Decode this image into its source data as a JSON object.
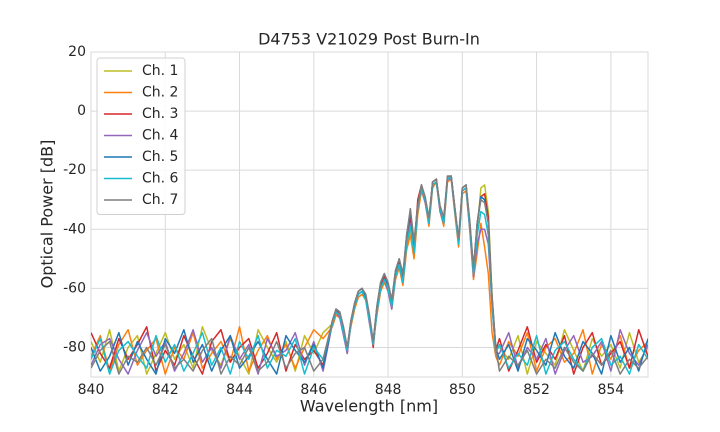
{
  "chart_data": {
    "type": "line",
    "title": "D4753 V21029 Post Burn-In",
    "x_label": "Wavelength [nm]",
    "y_label": "Optical Power [dB]",
    "xlim": [
      840,
      855
    ],
    "ylim": [
      -90,
      20
    ],
    "xticks": [
      840,
      842,
      844,
      846,
      848,
      850,
      852,
      854
    ],
    "yticks": [
      -80,
      -60,
      -40,
      -20,
      0,
      20
    ],
    "grid": true,
    "legend": "upper left",
    "x": [
      840,
      840.25,
      840.5,
      840.75,
      841,
      841.25,
      841.5,
      841.75,
      842,
      842.25,
      842.5,
      842.75,
      843,
      843.25,
      843.5,
      843.75,
      844,
      844.25,
      844.5,
      844.75,
      845,
      845.25,
      845.5,
      845.75,
      846,
      846.25,
      846.5,
      846.6,
      846.7,
      846.8,
      846.9,
      847,
      847.1,
      847.2,
      847.3,
      847.4,
      847.5,
      847.6,
      847.7,
      847.8,
      847.9,
      848,
      848.1,
      848.2,
      848.3,
      848.4,
      848.5,
      848.6,
      848.7,
      848.8,
      848.9,
      849,
      849.1,
      849.2,
      849.3,
      849.4,
      849.5,
      849.6,
      849.7,
      849.8,
      849.9,
      850,
      850.1,
      850.2,
      850.3,
      850.4,
      850.5,
      850.6,
      850.7,
      850.8,
      850.9,
      851,
      851.25,
      851.5,
      851.75,
      852,
      852.25,
      852.5,
      852.75,
      853,
      853.25,
      853.5,
      853.75,
      854,
      854.25,
      854.5,
      854.75,
      855
    ],
    "series": [
      {
        "name": "Ch. 1",
        "color": "#bcbd22",
        "values": [
          -78,
          -85,
          -74,
          -88,
          -80,
          -76,
          -89,
          -82,
          -75,
          -84,
          -79,
          -87,
          -73,
          -81,
          -86,
          -77,
          -83,
          -89,
          -74,
          -80,
          -85,
          -78,
          -88,
          -76,
          -82,
          -75,
          -72,
          -68,
          -69,
          -74,
          -81,
          -72,
          -66,
          -62,
          -61,
          -63,
          -70,
          -79,
          -68,
          -60,
          -57,
          -60,
          -66,
          -56,
          -52,
          -58,
          -46,
          -40,
          -49,
          -33,
          -26,
          -30,
          -38,
          -25,
          -24,
          -33,
          -38,
          -23,
          -22,
          -34,
          -45,
          -27,
          -26,
          -39,
          -55,
          -40,
          -26,
          -25,
          -34,
          -62,
          -80,
          -80,
          -84,
          -76,
          -89,
          -78,
          -82,
          -86,
          -74,
          -81,
          -88,
          -77,
          -83,
          -79,
          -87,
          -75,
          -85,
          -80
        ]
      },
      {
        "name": "Ch. 2",
        "color": "#ff7f0e",
        "values": [
          -83,
          -76,
          -88,
          -79,
          -74,
          -86,
          -81,
          -77,
          -89,
          -80,
          -84,
          -75,
          -87,
          -82,
          -78,
          -85,
          -73,
          -88,
          -81,
          -76,
          -84,
          -79,
          -87,
          -80,
          -74,
          -77,
          -73,
          -69,
          -70,
          -75,
          -80,
          -73,
          -67,
          -63,
          -62,
          -64,
          -71,
          -78,
          -69,
          -61,
          -58,
          -61,
          -67,
          -57,
          -53,
          -59,
          -47,
          -42,
          -50,
          -35,
          -27,
          -31,
          -39,
          -26,
          -24,
          -34,
          -39,
          -24,
          -23,
          -35,
          -46,
          -28,
          -27,
          -40,
          -57,
          -48,
          -38,
          -46,
          -55,
          -75,
          -83,
          -86,
          -78,
          -83,
          -75,
          -88,
          -80,
          -77,
          -85,
          -82,
          -74,
          -89,
          -79,
          -84,
          -76,
          -87,
          -81,
          -78
        ]
      },
      {
        "name": "Ch. 3",
        "color": "#d62728",
        "values": [
          -75,
          -82,
          -87,
          -77,
          -84,
          -79,
          -73,
          -88,
          -81,
          -86,
          -76,
          -83,
          -89,
          -78,
          -74,
          -85,
          -80,
          -77,
          -87,
          -82,
          -75,
          -88,
          -79,
          -84,
          -81,
          -86,
          -71,
          -67,
          -69,
          -75,
          -82,
          -71,
          -65,
          -61,
          -60,
          -63,
          -71,
          -80,
          -67,
          -59,
          -56,
          -60,
          -65,
          -55,
          -51,
          -57,
          -44,
          -36,
          -47,
          -30,
          -25,
          -30,
          -37,
          -24,
          -23,
          -33,
          -37,
          -22,
          -22,
          -33,
          -44,
          -26,
          -25,
          -38,
          -54,
          -38,
          -29,
          -28,
          -36,
          -64,
          -81,
          -77,
          -88,
          -81,
          -73,
          -85,
          -79,
          -84,
          -76,
          -89,
          -80,
          -75,
          -86,
          -82,
          -78,
          -87,
          -74,
          -83
        ]
      },
      {
        "name": "Ch. 4",
        "color": "#9467bd",
        "values": [
          -86,
          -79,
          -77,
          -84,
          -89,
          -81,
          -75,
          -83,
          -78,
          -88,
          -82,
          -74,
          -85,
          -80,
          -87,
          -76,
          -84,
          -79,
          -89,
          -77,
          -83,
          -81,
          -75,
          -86,
          -78,
          -88,
          -72,
          -68,
          -70,
          -76,
          -82,
          -72,
          -66,
          -62,
          -61,
          -64,
          -72,
          -79,
          -68,
          -60,
          -57,
          -61,
          -67,
          -56,
          -52,
          -58,
          -45,
          -38,
          -48,
          -32,
          -26,
          -31,
          -38,
          -25,
          -24,
          -34,
          -38,
          -23,
          -23,
          -34,
          -45,
          -27,
          -26,
          -40,
          -56,
          -45,
          -40,
          -40,
          -45,
          -66,
          -82,
          -82,
          -75,
          -87,
          -80,
          -84,
          -77,
          -89,
          -81,
          -76,
          -85,
          -83,
          -78,
          -88,
          -74,
          -82,
          -86,
          -79
        ]
      },
      {
        "name": "Ch. 5",
        "color": "#1f77b4",
        "values": [
          -80,
          -88,
          -83,
          -75,
          -86,
          -78,
          -84,
          -89,
          -77,
          -82,
          -74,
          -85,
          -79,
          -88,
          -81,
          -76,
          -87,
          -83,
          -78,
          -84,
          -89,
          -76,
          -81,
          -85,
          -79,
          -87,
          -71,
          -67,
          -68,
          -74,
          -80,
          -71,
          -65,
          -61,
          -60,
          -63,
          -70,
          -78,
          -66,
          -58,
          -55,
          -59,
          -64,
          -54,
          -50,
          -56,
          -42,
          -34,
          -45,
          -32,
          -25,
          -30,
          -37,
          -24,
          -23,
          -33,
          -37,
          -23,
          -22,
          -33,
          -44,
          -26,
          -25,
          -38,
          -54,
          -38,
          -29,
          -30,
          -38,
          -63,
          -80,
          -84,
          -79,
          -88,
          -77,
          -81,
          -86,
          -75,
          -83,
          -87,
          -78,
          -82,
          -89,
          -76,
          -85,
          -80,
          -88,
          -77
        ]
      },
      {
        "name": "Ch. 6",
        "color": "#17becf",
        "values": [
          -84,
          -77,
          -89,
          -81,
          -78,
          -83,
          -87,
          -76,
          -85,
          -79,
          -88,
          -82,
          -75,
          -86,
          -80,
          -89,
          -78,
          -84,
          -76,
          -87,
          -81,
          -83,
          -77,
          -89,
          -80,
          -84,
          -72,
          -68,
          -69,
          -75,
          -81,
          -72,
          -66,
          -62,
          -61,
          -64,
          -71,
          -79,
          -68,
          -60,
          -57,
          -60,
          -66,
          -56,
          -52,
          -58,
          -45,
          -39,
          -48,
          -33,
          -26,
          -30,
          -38,
          -25,
          -24,
          -33,
          -38,
          -23,
          -22,
          -34,
          -45,
          -27,
          -26,
          -39,
          -55,
          -42,
          -34,
          -35,
          -42,
          -65,
          -82,
          -79,
          -87,
          -82,
          -86,
          -76,
          -89,
          -81,
          -78,
          -84,
          -88,
          -80,
          -77,
          -86,
          -83,
          -89,
          -79,
          -84
        ]
      },
      {
        "name": "Ch. 7",
        "color": "#7f7f7f",
        "values": [
          -87,
          -81,
          -78,
          -89,
          -83,
          -85,
          -80,
          -86,
          -79,
          -87,
          -84,
          -88,
          -81,
          -77,
          -89,
          -83,
          -86,
          -80,
          -88,
          -85,
          -78,
          -87,
          -82,
          -80,
          -88,
          -84,
          -71,
          -67,
          -68,
          -73,
          -80,
          -71,
          -65,
          -61,
          -60,
          -62,
          -69,
          -78,
          -66,
          -58,
          -55,
          -58,
          -64,
          -54,
          -50,
          -55,
          -42,
          -33,
          -44,
          -32,
          -25,
          -29,
          -36,
          -24,
          -23,
          -32,
          -36,
          -22,
          -22,
          -33,
          -43,
          -26,
          -25,
          -37,
          -53,
          -38,
          -30,
          -31,
          -38,
          -63,
          -80,
          -88,
          -83,
          -86,
          -81,
          -89,
          -84,
          -87,
          -80,
          -85,
          -88,
          -82,
          -86,
          -81,
          -89,
          -84,
          -87,
          -83
        ]
      }
    ]
  }
}
